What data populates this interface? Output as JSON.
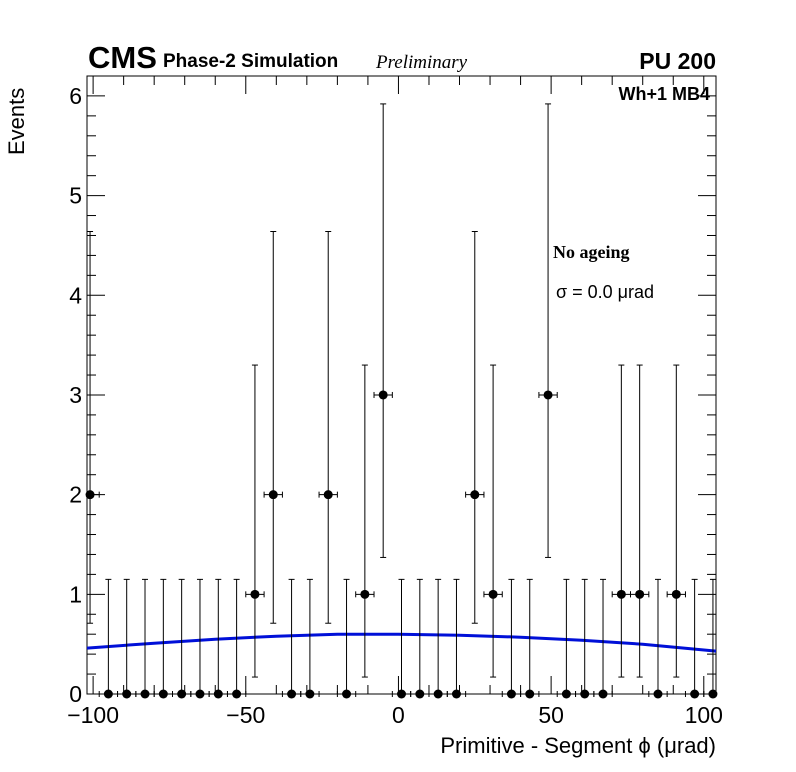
{
  "header": {
    "cms": "CMS",
    "subtitle": "Phase-2 Simulation",
    "preliminary": "Preliminary",
    "pileup": "PU 200",
    "station": "Wh+1 MB4"
  },
  "legend": {
    "ageing": "No ageing",
    "sigma": "σ = 0.0  μrad"
  },
  "chart_data": {
    "type": "scatter",
    "xlabel": "Primitive - Segment ϕ (μrad)",
    "ylabel": "Events",
    "xlim": [
      -102,
      104
    ],
    "ylim": [
      0,
      6.2
    ],
    "x_ticks": [
      -100,
      -50,
      0,
      50,
      100
    ],
    "x_tick_labels": [
      "−100",
      "−50",
      "0",
      "50",
      "100"
    ],
    "y_ticks": [
      0,
      1,
      2,
      3,
      4,
      5,
      6
    ],
    "bin_halfwidth": 3,
    "points": [
      {
        "x": -101,
        "y": 2,
        "err_lo": 1.29,
        "err_hi": 2.64
      },
      {
        "x": -95,
        "y": 0,
        "err_lo": 0,
        "err_hi": 1.15
      },
      {
        "x": -89,
        "y": 0,
        "err_lo": 0,
        "err_hi": 1.15
      },
      {
        "x": -83,
        "y": 0,
        "err_lo": 0,
        "err_hi": 1.15
      },
      {
        "x": -77,
        "y": 0,
        "err_lo": 0,
        "err_hi": 1.15
      },
      {
        "x": -71,
        "y": 0,
        "err_lo": 0,
        "err_hi": 1.15
      },
      {
        "x": -65,
        "y": 0,
        "err_lo": 0,
        "err_hi": 1.15
      },
      {
        "x": -59,
        "y": 0,
        "err_lo": 0,
        "err_hi": 1.15
      },
      {
        "x": -53,
        "y": 0,
        "err_lo": 0,
        "err_hi": 1.15
      },
      {
        "x": -47,
        "y": 1,
        "err_lo": 0.83,
        "err_hi": 2.3
      },
      {
        "x": -41,
        "y": 2,
        "err_lo": 1.29,
        "err_hi": 2.64
      },
      {
        "x": -35,
        "y": 0,
        "err_lo": 0,
        "err_hi": 1.15
      },
      {
        "x": -29,
        "y": 0,
        "err_lo": 0,
        "err_hi": 1.15
      },
      {
        "x": -23,
        "y": 2,
        "err_lo": 1.29,
        "err_hi": 2.64
      },
      {
        "x": -17,
        "y": 0,
        "err_lo": 0,
        "err_hi": 1.15
      },
      {
        "x": -11,
        "y": 1,
        "err_lo": 0.83,
        "err_hi": 2.3
      },
      {
        "x": -5,
        "y": 3,
        "err_lo": 1.63,
        "err_hi": 2.92
      },
      {
        "x": 1,
        "y": 0,
        "err_lo": 0,
        "err_hi": 1.15
      },
      {
        "x": 7,
        "y": 0,
        "err_lo": 0,
        "err_hi": 1.15
      },
      {
        "x": 13,
        "y": 0,
        "err_lo": 0,
        "err_hi": 1.15
      },
      {
        "x": 19,
        "y": 0,
        "err_lo": 0,
        "err_hi": 1.15
      },
      {
        "x": 25,
        "y": 2,
        "err_lo": 1.29,
        "err_hi": 2.64
      },
      {
        "x": 31,
        "y": 1,
        "err_lo": 0.83,
        "err_hi": 2.3
      },
      {
        "x": 37,
        "y": 0,
        "err_lo": 0,
        "err_hi": 1.15
      },
      {
        "x": 43,
        "y": 0,
        "err_lo": 0,
        "err_hi": 1.15
      },
      {
        "x": 49,
        "y": 3,
        "err_lo": 1.63,
        "err_hi": 2.92
      },
      {
        "x": 55,
        "y": 0,
        "err_lo": 0,
        "err_hi": 1.15
      },
      {
        "x": 61,
        "y": 0,
        "err_lo": 0,
        "err_hi": 1.15
      },
      {
        "x": 67,
        "y": 0,
        "err_lo": 0,
        "err_hi": 1.15
      },
      {
        "x": 73,
        "y": 1,
        "err_lo": 0.83,
        "err_hi": 2.3
      },
      {
        "x": 79,
        "y": 1,
        "err_lo": 0.83,
        "err_hi": 2.3
      },
      {
        "x": 85,
        "y": 0,
        "err_lo": 0,
        "err_hi": 1.15
      },
      {
        "x": 91,
        "y": 1,
        "err_lo": 0.83,
        "err_hi": 2.3
      },
      {
        "x": 97,
        "y": 0,
        "err_lo": 0,
        "err_hi": 1.15
      },
      {
        "x": 103,
        "y": 0,
        "err_lo": 0,
        "err_hi": 1.15
      }
    ],
    "fit": {
      "x": [
        -102,
        -80,
        -60,
        -40,
        -20,
        0,
        20,
        40,
        60,
        80,
        104
      ],
      "y": [
        0.46,
        0.51,
        0.55,
        0.58,
        0.6,
        0.6,
        0.59,
        0.57,
        0.54,
        0.5,
        0.43
      ]
    },
    "colors": {
      "fit": "#0010d8",
      "points": "#000000"
    }
  }
}
